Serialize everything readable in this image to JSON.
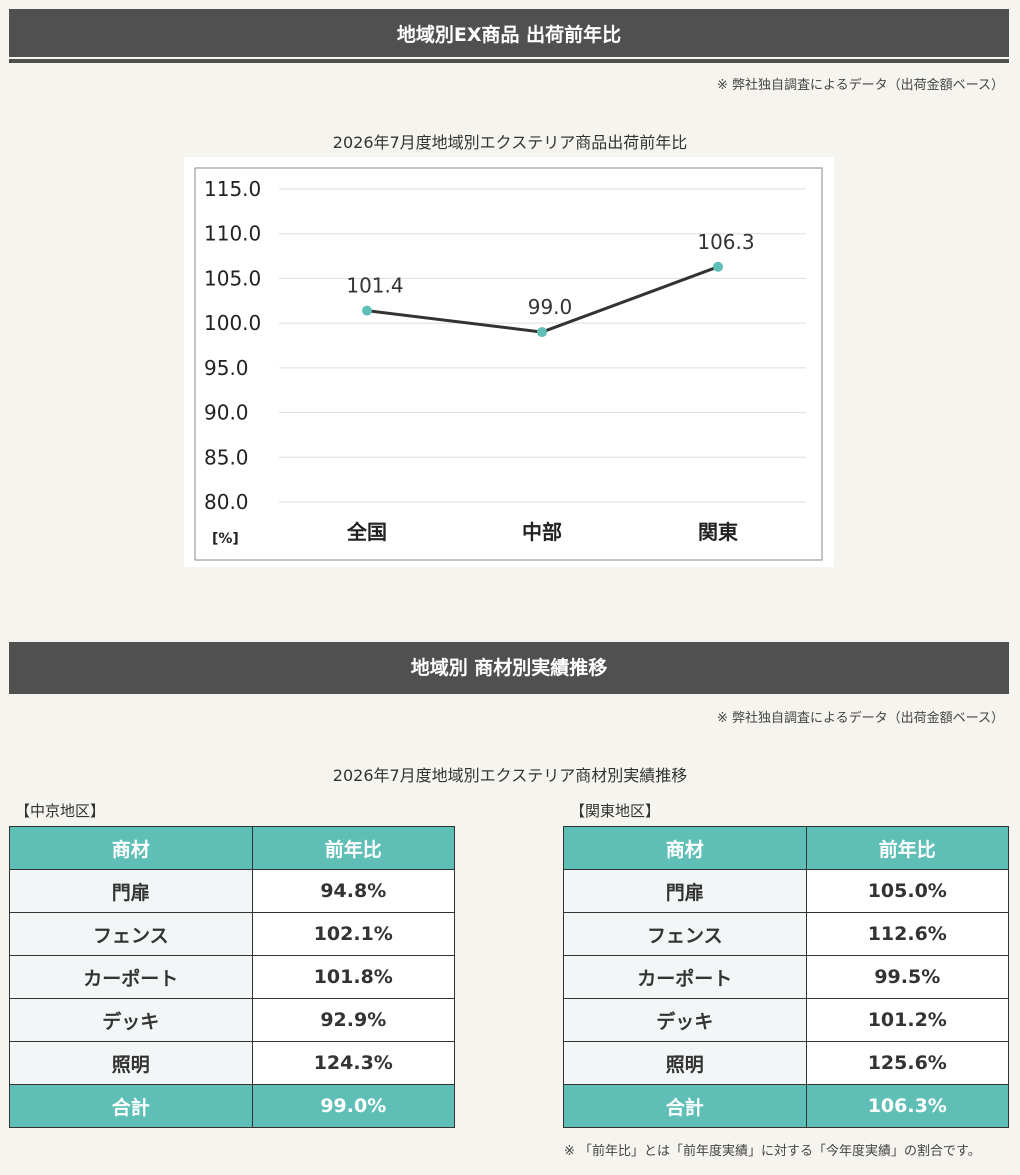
{
  "section1": {
    "title": "地域別EX商品 出荷前年比",
    "note": "※ 弊社独自調査によるデータ（出荷金額ベース）"
  },
  "chart_data": {
    "type": "line",
    "title": "2026年7月度地域別エクステリア商品出荷前年比",
    "categories": [
      "全国",
      "中部",
      "関東"
    ],
    "series": [
      {
        "values": [
          101.4,
          99.0,
          106.3
        ]
      }
    ],
    "value_labels": [
      "101.4",
      "99.0",
      "106.3"
    ],
    "ylim": [
      80.0,
      115.0
    ],
    "yticks": [
      "80.0",
      "85.0",
      "90.0",
      "95.0",
      "100.0",
      "105.0",
      "110.0",
      "115.0"
    ],
    "ytick_values": [
      80,
      85,
      90,
      95,
      100,
      105,
      110,
      115
    ],
    "unit_label": "[%]",
    "grid": true,
    "colors": {
      "line": "#333333",
      "marker": "#5fbfb7",
      "grid": "#dddddd"
    }
  },
  "section2": {
    "title": "地域別 商材別実績推移",
    "note": "※ 弊社独自調査によるデータ（出荷金額ベース）",
    "subtitle": "2026年7月度地域別エクステリア商材別実績推移"
  },
  "tables": {
    "chukyo": {
      "region": "【中京地区】",
      "headers": [
        "商材",
        "前年比"
      ],
      "rows": [
        [
          "門扉",
          "94.8%"
        ],
        [
          "フェンス",
          "102.1%"
        ],
        [
          "カーポート",
          "101.8%"
        ],
        [
          "デッキ",
          "92.9%"
        ],
        [
          "照明",
          "124.3%"
        ]
      ],
      "total": [
        "合計",
        "99.0%"
      ]
    },
    "kanto": {
      "region": "【関東地区】",
      "headers": [
        "商材",
        "前年比"
      ],
      "rows": [
        [
          "門扉",
          "105.0%"
        ],
        [
          "フェンス",
          "112.6%"
        ],
        [
          "カーポート",
          "99.5%"
        ],
        [
          "デッキ",
          "101.2%"
        ],
        [
          "照明",
          "125.6%"
        ]
      ],
      "total": [
        "合計",
        "106.3%"
      ]
    }
  },
  "footnote": "※ 「前年比」とは「前年度実績」に対する「今年度実績」の割合です。",
  "colors": {
    "header_bg": "#505050",
    "accent": "#5fbfb7",
    "page_bg": "#f6f4ee"
  }
}
